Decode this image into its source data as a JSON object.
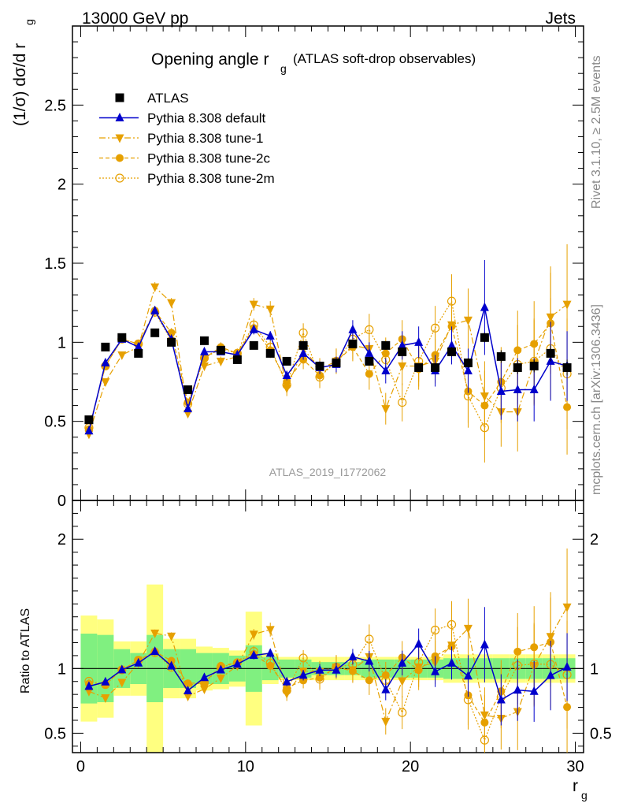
{
  "header": {
    "energy": "13000 GeV pp",
    "category": "Jets",
    "title_main": "Opening angle r",
    "title_sub": "g",
    "title_extra": "(ATLAS soft-drop observables)",
    "ylabel_main": "(1/σ) dσ/d r",
    "ylabel_sub": "g",
    "ratio_ylabel": "Ratio to ATLAS",
    "xlabel_main": "r",
    "xlabel_sub": "g",
    "side_top": "Rivet 3.1.10, ≥ 2.5M events",
    "side_bottom": "mcplots.cern.ch [arXiv:1306.3436]",
    "analysis_id": "ATLAS_2019_I1772062"
  },
  "colors": {
    "data": "#000000",
    "default": "#0000cc",
    "tunes": "#e6a000",
    "band_inner": "#80f080",
    "band_outer": "#ffff80"
  },
  "chart_data": {
    "type": "scatter",
    "x": [
      0.5,
      1.5,
      2.5,
      3.5,
      4.5,
      5.5,
      6.5,
      7.5,
      8.5,
      9.5,
      10.5,
      11.5,
      12.5,
      13.5,
      14.5,
      15.5,
      16.5,
      17.5,
      18.5,
      19.5,
      20.5,
      21.5,
      22.5,
      23.5,
      24.5,
      25.5,
      26.5,
      27.5,
      28.5,
      29.5
    ],
    "xlim": [
      -0.5,
      30.5
    ],
    "xticks": [
      0,
      10,
      20,
      30
    ],
    "main_ylim": [
      0,
      3.0
    ],
    "main_yticks": [
      0.5,
      1,
      1.5,
      2,
      2.5
    ],
    "ratio_ylim": [
      0.35,
      2.3
    ],
    "ratio_yticks": [
      0.5,
      1,
      2
    ],
    "legend_position": "top-left",
    "series": [
      {
        "name": "ATLAS",
        "style": "data",
        "marker": "square",
        "values": [
          0.51,
          0.97,
          1.03,
          0.93,
          1.06,
          1.0,
          0.7,
          1.01,
          0.95,
          0.89,
          0.98,
          0.93,
          0.88,
          0.98,
          0.85,
          0.87,
          0.99,
          0.88,
          0.98,
          0.94,
          0.84,
          0.84,
          0.94,
          0.87,
          1.03,
          0.91,
          0.84,
          0.85,
          0.93,
          0.84
        ],
        "errors": [
          0.01,
          0.01,
          0.01,
          0.01,
          0.01,
          0.01,
          0.01,
          0.01,
          0.01,
          0.01,
          0.01,
          0.01,
          0.01,
          0.01,
          0.02,
          0.02,
          0.02,
          0.02,
          0.02,
          0.02,
          0.02,
          0.02,
          0.03,
          0.03,
          0.03,
          0.04,
          0.04,
          0.04,
          0.05,
          0.05
        ]
      },
      {
        "name": "Pythia 8.308 default",
        "style": "default",
        "marker": "triangle-up",
        "values": [
          0.44,
          0.87,
          1.02,
          0.97,
          1.2,
          1.02,
          0.58,
          0.94,
          0.94,
          0.92,
          1.08,
          1.04,
          0.79,
          0.93,
          0.84,
          0.86,
          1.08,
          0.93,
          0.82,
          0.98,
          1.0,
          0.82,
          0.98,
          0.82,
          1.22,
          0.69,
          0.7,
          0.7,
          0.88,
          0.85
        ],
        "errors": [
          0.01,
          0.01,
          0.01,
          0.01,
          0.02,
          0.02,
          0.02,
          0.02,
          0.02,
          0.02,
          0.03,
          0.03,
          0.03,
          0.04,
          0.04,
          0.05,
          0.06,
          0.07,
          0.08,
          0.09,
          0.1,
          0.1,
          0.12,
          0.14,
          0.3,
          0.18,
          0.2,
          0.2,
          0.25,
          0.22
        ]
      },
      {
        "name": "Pythia 8.308 tune-1",
        "style": "tune1",
        "marker": "triangle-down",
        "values": [
          0.42,
          0.75,
          0.92,
          0.97,
          1.35,
          1.25,
          0.55,
          0.85,
          0.88,
          0.91,
          1.24,
          1.21,
          0.71,
          0.96,
          0.83,
          0.88,
          0.98,
          0.96,
          0.58,
          0.85,
          0.85,
          0.88,
          1.11,
          1.14,
          0.66,
          0.56,
          0.56,
          0.87,
          1.16,
          1.24
        ],
        "errors": [
          0.01,
          0.01,
          0.02,
          0.02,
          0.03,
          0.03,
          0.02,
          0.03,
          0.03,
          0.03,
          0.04,
          0.05,
          0.05,
          0.06,
          0.07,
          0.08,
          0.09,
          0.1,
          0.1,
          0.12,
          0.13,
          0.14,
          0.17,
          0.2,
          0.22,
          0.22,
          0.25,
          0.27,
          0.32,
          0.38
        ]
      },
      {
        "name": "Pythia 8.308 tune-2c",
        "style": "tune2c",
        "marker": "circle",
        "values": [
          0.45,
          0.85,
          1.02,
          0.99,
          1.2,
          1.06,
          0.62,
          0.9,
          0.97,
          0.93,
          1.09,
          0.95,
          0.75,
          0.89,
          0.79,
          0.88,
          0.97,
          0.8,
          0.93,
          1.02,
          0.83,
          0.92,
          1.1,
          0.69,
          0.6,
          0.75,
          0.95,
          0.99,
          1.12,
          0.59
        ],
        "errors": [
          0.01,
          0.01,
          0.02,
          0.02,
          0.03,
          0.03,
          0.02,
          0.03,
          0.03,
          0.03,
          0.04,
          0.05,
          0.05,
          0.06,
          0.07,
          0.08,
          0.09,
          0.1,
          0.1,
          0.12,
          0.13,
          0.14,
          0.17,
          0.2,
          0.22,
          0.22,
          0.25,
          0.27,
          0.32,
          0.3
        ]
      },
      {
        "name": "Pythia 8.308 tune-2m",
        "style": "tune2m",
        "marker": "circle-open",
        "values": [
          0.46,
          0.85,
          1.02,
          0.99,
          1.19,
          1.01,
          0.61,
          0.9,
          0.96,
          0.93,
          1.11,
          0.97,
          0.73,
          1.06,
          0.78,
          0.88,
          1.02,
          1.08,
          0.89,
          0.62,
          0.88,
          1.09,
          1.26,
          0.66,
          0.46,
          0.71,
          0.86,
          0.88,
          0.96,
          0.8
        ],
        "errors": [
          0.01,
          0.01,
          0.02,
          0.02,
          0.03,
          0.03,
          0.02,
          0.03,
          0.03,
          0.03,
          0.04,
          0.05,
          0.05,
          0.06,
          0.07,
          0.08,
          0.09,
          0.1,
          0.1,
          0.12,
          0.13,
          0.14,
          0.17,
          0.2,
          0.22,
          0.22,
          0.25,
          0.27,
          0.32,
          0.35
        ]
      }
    ],
    "ratio_band": {
      "inner": [
        [
          0.73,
          1.27
        ],
        [
          0.74,
          1.26
        ],
        [
          0.85,
          1.15
        ],
        [
          0.88,
          1.12
        ],
        [
          0.74,
          1.26
        ],
        [
          0.85,
          1.15
        ],
        [
          0.85,
          1.15
        ],
        [
          0.88,
          1.12
        ],
        [
          0.88,
          1.12
        ],
        [
          0.9,
          1.1
        ],
        [
          0.82,
          1.18
        ],
        [
          0.91,
          1.09
        ],
        [
          0.93,
          1.07
        ],
        [
          0.93,
          1.07
        ],
        [
          0.95,
          1.05
        ],
        [
          0.95,
          1.05
        ],
        [
          0.95,
          1.05
        ],
        [
          0.93,
          1.07
        ],
        [
          0.93,
          1.07
        ],
        [
          0.93,
          1.07
        ],
        [
          0.93,
          1.07
        ],
        [
          0.93,
          1.07
        ],
        [
          0.92,
          1.08
        ],
        [
          0.92,
          1.08
        ],
        [
          0.92,
          1.08
        ],
        [
          0.92,
          1.08
        ],
        [
          0.92,
          1.08
        ],
        [
          0.92,
          1.08
        ],
        [
          0.92,
          1.08
        ],
        [
          0.92,
          1.08
        ]
      ],
      "outer": [
        [
          0.59,
          1.41
        ],
        [
          0.62,
          1.38
        ],
        [
          0.79,
          1.21
        ],
        [
          0.79,
          1.21
        ],
        [
          0.35,
          1.65
        ],
        [
          0.77,
          1.23
        ],
        [
          0.77,
          1.23
        ],
        [
          0.83,
          1.17
        ],
        [
          0.84,
          1.16
        ],
        [
          0.86,
          1.14
        ],
        [
          0.56,
          1.44
        ],
        [
          0.88,
          1.12
        ],
        [
          0.91,
          1.09
        ],
        [
          0.91,
          1.09
        ],
        [
          0.91,
          1.09
        ],
        [
          0.91,
          1.09
        ],
        [
          0.91,
          1.09
        ],
        [
          0.91,
          1.09
        ],
        [
          0.91,
          1.09
        ],
        [
          0.91,
          1.09
        ],
        [
          0.91,
          1.09
        ],
        [
          0.91,
          1.09
        ],
        [
          0.89,
          1.11
        ],
        [
          0.89,
          1.11
        ],
        [
          0.89,
          1.11
        ],
        [
          0.89,
          1.11
        ],
        [
          0.89,
          1.11
        ],
        [
          0.89,
          1.11
        ],
        [
          0.89,
          1.11
        ],
        [
          0.89,
          1.11
        ]
      ]
    }
  }
}
